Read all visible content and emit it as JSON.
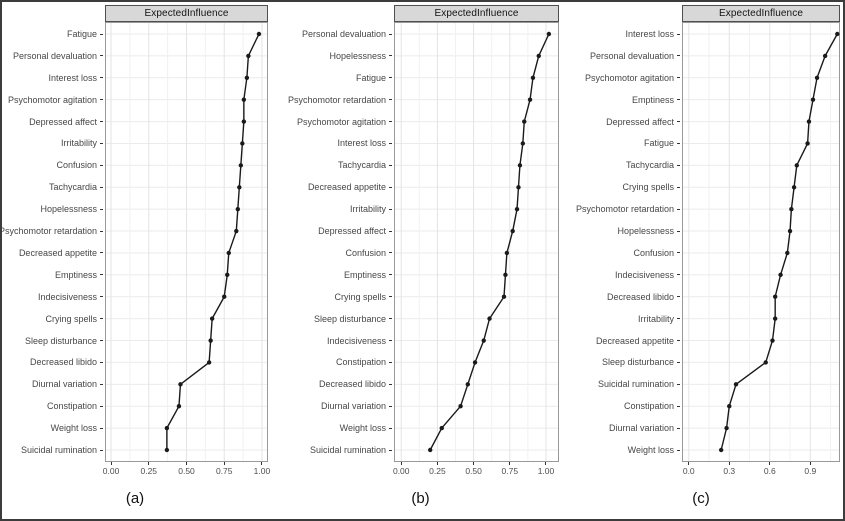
{
  "figure": {
    "background": "#ffffff",
    "border_color": "#3c3c3c",
    "strip_background": "#d8d8d8",
    "strip_border_color": "#4f4f4f",
    "panel_border_color": "#999999",
    "gridline_major_color": "#e4e4e4",
    "gridline_minor_color": "#f1f1f1",
    "row_gridline_color": "#ebebeb",
    "line_color": "#1a1a1a",
    "point_color": "#1a1a1a",
    "axis_text_color": "#4d4d4d",
    "label_text_color": "#474747"
  },
  "chart_data": [
    {
      "type": "line",
      "subtype": "dot-line-centrality-plot",
      "orientation": "categories-on-y",
      "panel": "a",
      "caption": "(a)",
      "strip_title": "ExpectedInfluence",
      "title": "",
      "xlabel": "",
      "ylabel": "",
      "grid": true,
      "legend": false,
      "xlim": [
        -0.04,
        1.04
      ],
      "x_ticks": [
        0,
        0.25,
        0.5,
        0.75,
        1
      ],
      "x_tick_labels": [
        "0.00",
        "0.25",
        "0.50",
        "0.75",
        "1.00"
      ],
      "categories": [
        "Fatigue",
        "Personal devaluation",
        "Interest loss",
        "Psychomotor agitation",
        "Depressed affect",
        "Irritability",
        "Confusion",
        "Tachycardia",
        "Hopelessness",
        "Psychomotor retardation",
        "Decreased appetite",
        "Emptiness",
        "Indecisiveness",
        "Crying spells",
        "Sleep disturbance",
        "Decreased libido",
        "Diurnal variation",
        "Constipation",
        "Weight loss",
        "Suicidal rumination"
      ],
      "values": [
        0.98,
        0.91,
        0.9,
        0.88,
        0.88,
        0.87,
        0.86,
        0.85,
        0.84,
        0.83,
        0.78,
        0.77,
        0.75,
        0.67,
        0.66,
        0.65,
        0.46,
        0.45,
        0.37,
        0.37
      ]
    },
    {
      "type": "line",
      "subtype": "dot-line-centrality-plot",
      "orientation": "categories-on-y",
      "panel": "b",
      "caption": "(b)",
      "strip_title": "ExpectedInfluence",
      "title": "",
      "xlabel": "",
      "ylabel": "",
      "grid": true,
      "legend": false,
      "xlim": [
        -0.05,
        1.09
      ],
      "x_ticks": [
        0,
        0.25,
        0.5,
        0.75,
        1
      ],
      "x_tick_labels": [
        "0.00",
        "0.25",
        "0.50",
        "0.75",
        "1.00"
      ],
      "categories": [
        "Personal devaluation",
        "Hopelessness",
        "Fatigue",
        "Psychomotor retardation",
        "Psychomotor agitation",
        "Interest loss",
        "Tachycardia",
        "Decreased appetite",
        "Irritability",
        "Depressed affect",
        "Confusion",
        "Emptiness",
        "Crying spells",
        "Sleep disturbance",
        "Indecisiveness",
        "Constipation",
        "Decreased libido",
        "Diurnal variation",
        "Weight loss",
        "Suicidal rumination"
      ],
      "values": [
        1.02,
        0.95,
        0.91,
        0.89,
        0.85,
        0.84,
        0.82,
        0.81,
        0.8,
        0.77,
        0.73,
        0.72,
        0.71,
        0.61,
        0.57,
        0.51,
        0.46,
        0.41,
        0.28,
        0.2
      ]
    },
    {
      "type": "line",
      "subtype": "dot-line-centrality-plot",
      "orientation": "categories-on-y",
      "panel": "c",
      "caption": "(c)",
      "strip_title": "ExpectedInfluence",
      "title": "",
      "xlabel": "",
      "ylabel": "",
      "grid": true,
      "legend": false,
      "xlim": [
        -0.05,
        1.12
      ],
      "x_ticks": [
        0,
        0.3,
        0.6,
        0.9
      ],
      "x_tick_labels": [
        "0.0",
        "0.3",
        "0.6",
        "0.9"
      ],
      "categories": [
        "Interest loss",
        "Personal devaluation",
        "Psychomotor agitation",
        "Emptiness",
        "Depressed affect",
        "Fatigue",
        "Tachycardia",
        "Crying spells",
        "Psychomotor retardation",
        "Hopelessness",
        "Confusion",
        "Indecisiveness",
        "Decreased libido",
        "Irritability",
        "Decreased appetite",
        "Sleep disturbance",
        "Suicidal rumination",
        "Constipation",
        "Diurnal variation",
        "Weight loss"
      ],
      "values": [
        1.1,
        1.01,
        0.95,
        0.92,
        0.89,
        0.88,
        0.8,
        0.78,
        0.76,
        0.75,
        0.73,
        0.68,
        0.64,
        0.64,
        0.62,
        0.57,
        0.35,
        0.3,
        0.28,
        0.24
      ]
    }
  ]
}
